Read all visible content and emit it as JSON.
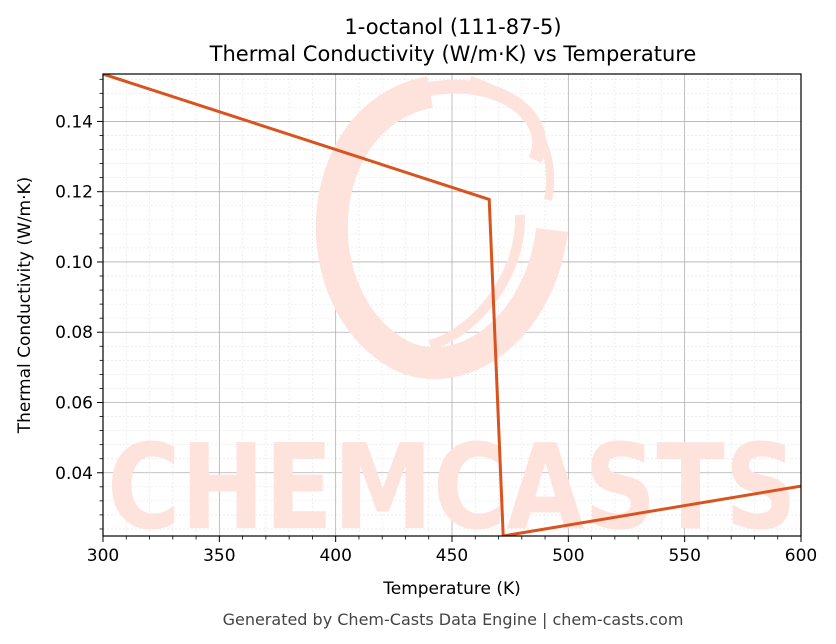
{
  "chart_data": {
    "type": "line",
    "title": "1-octanol (111-87-5)",
    "subtitle": "Thermal Conductivity (W/m·K) vs Temperature",
    "xlabel": "Temperature (K)",
    "ylabel": "Thermal Conductivity (W/m·K)",
    "xlim": [
      300,
      600
    ],
    "ylim": [
      0.022,
      0.1535
    ],
    "x_ticks": [
      "300",
      "350",
      "400",
      "450",
      "500",
      "550",
      "600"
    ],
    "y_ticks": [
      "0.04",
      "0.06",
      "0.08",
      "0.10",
      "0.12",
      "0.14"
    ],
    "grid": true,
    "legend": "none",
    "series": [
      {
        "color": "#d9531e",
        "x": [
          300,
          466,
          472,
          600
        ],
        "y": [
          0.1535,
          0.1178,
          0.022,
          0.0362
        ]
      }
    ]
  },
  "watermark": {
    "text": "CHEMCASTS",
    "color": "#fde3dc"
  },
  "footer": "Generated by Chem-Casts Data Engine | chem-casts.com"
}
